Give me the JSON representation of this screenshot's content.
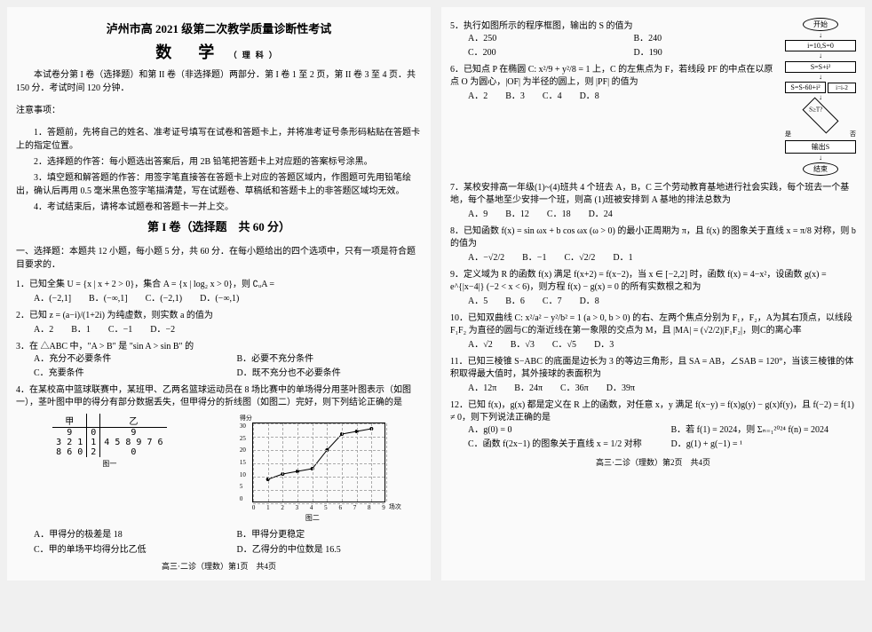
{
  "header": {
    "title_main": "泸州市高 2021 级第二次教学质量诊断性考试",
    "title_sub": "数　学",
    "subject_suffix": "（理科）",
    "intro1": "本试卷分第 I 卷（选择题）和第 II 卷（非选择题）两部分．第 I 卷 1 至 2 页，第 II 卷 3 至 4 页．共 150 分．考试时间 120 分钟．",
    "notice_title": "注意事项：",
    "notice1": "1．答题前，先将自己的姓名、准考证号填写在试卷和答题卡上，并将准考证号条形码粘贴在答题卡上的指定位置。",
    "notice2": "2．选择题的作答：每小题选出答案后，用 2B 铅笔把答题卡上对应题的答案标号涂黑。",
    "notice3": "3．填空题和解答题的作答：用签字笔直接答在答题卡上对应的答题区域内，作图题可先用铅笔绘出，确认后再用 0.5 毫米黑色签字笔描清楚，写在试题卷、草稿纸和答题卡上的非答题区域均无效。",
    "notice4": "4．考试结束后，请将本试题卷和答题卡一并上交。"
  },
  "section1": {
    "title": "第 I 卷（选择题　共 60 分）",
    "desc": "一、选择题：本题共 12 小题，每小题 5 分，共 60 分．在每小题给出的四个选项中，只有一项是符合题目要求的．"
  },
  "q1": {
    "stem": "1．已知全集 U = {x | x + 2 > 0}，集合 A = {x | log₂ x > 0}，则 ∁ᵤA =",
    "a": "A．(−2,1]",
    "b": "B．(−∞,1]",
    "c": "C．(−2,1)",
    "d": "D．(−∞,1)"
  },
  "q2": {
    "stem": "2．已知 z = (a−i)/(1+2i) 为纯虚数，则实数 a 的值为",
    "a": "A．2",
    "b": "B．1",
    "c": "C．−1",
    "d": "D．−2"
  },
  "q3": {
    "stem": "3．在 △ABC 中，\"A > B\" 是 \"sin A > sin B\" 的",
    "a": "A．充分不必要条件",
    "b": "B．必要不充分条件",
    "c": "C．充要条件",
    "d": "D．既不充分也不必要条件"
  },
  "q4": {
    "stem": "4．在某校高中篮球联赛中，某班甲、乙两名篮球运动员在 8 场比赛中的单场得分用茎叶图表示（如图一），茎叶图中甲的得分有部分数据丢失，但甲得分的折线图（如图二）完好，则下列结论正确的是",
    "a": "A．甲得分的极差是 18",
    "b": "B．甲得分更稳定",
    "c": "C．甲的单场平均得分比乙低",
    "d": "D．乙得分的中位数是 16.5"
  },
  "q5": {
    "stem": "5．执行如图所示的程序框图，输出的 S 的值为",
    "a": "A．250",
    "b": "B．240",
    "c": "C．200",
    "d": "D．190"
  },
  "q6": {
    "stem": "6．已知点 P 在椭圆 C: x²/9 + y²/8 = 1 上，C 的左焦点为 F，若线段 PF 的中点在以原点 O 为圆心，|OF| 为半径的圆上，则 |PF| 的值为",
    "a": "A．2",
    "b": "B．3",
    "c": "C．4",
    "d": "D．8"
  },
  "q7": {
    "stem": "7．某校安排高一年级(1)~(4)班共 4 个班去 A，B，C 三个劳动教育基地进行社会实践，每个班去一个基地，每个基地至少安排一个班，则高 (1)班被安排到 A 基地的排法总数为",
    "a": "A．9",
    "b": "B．12",
    "c": "C．18",
    "d": "D．24"
  },
  "q8": {
    "stem": "8．已知函数 f(x) = sin ωx + b cos ωx (ω > 0) 的最小正周期为 π，且 f(x) 的图象关于直线 x = π/8 对称，则 b 的值为",
    "a": "A．−√2/2",
    "b": "B．−1",
    "c": "C．√2/2",
    "d": "D．1"
  },
  "q9": {
    "stem": "9．定义域为 R 的函数 f(x) 满足 f(x+2) = f(x−2)，当 x ∈ [−2,2] 时，函数 f(x) = 4−x²，设函数 g(x) = e^{|x−4|} (−2 < x < 6)，则方程 f(x) − g(x) = 0 的所有实数根之和为",
    "a": "A．5",
    "b": "B．6",
    "c": "C．7",
    "d": "D．8"
  },
  "q10": {
    "stem": "10．已知双曲线 C: x²/a² − y²/b² = 1 (a > 0, b > 0) 的右、左两个焦点分别为 F₁，F₂，A为其右顶点，以线段 F₁F₂ 为直径的圆与C的渐近线在第一象限的交点为 M，且 |MA| = (√2/2)|F₁F₂|，则C的离心率",
    "a": "A．√2",
    "b": "B．√3",
    "c": "C．√5",
    "d": "D．3"
  },
  "q11": {
    "stem": "11．已知三棱锥 S−ABC 的底面是边长为 3 的等边三角形，且 SA = AB，∠SAB = 120°，当该三棱锥的体积取得最大值时，其外接球的表面积为",
    "a": "A．12π",
    "b": "B．24π",
    "c": "C．36π",
    "d": "D．39π"
  },
  "q12": {
    "stem": "12．已知 f(x)，g(x) 都是定义在 R 上的函数，对任意 x，y 满足 f(x−y) = f(x)g(y) − g(x)f(y)，且 f(−2) = f(1) ≠ 0，则下列说法正确的是",
    "a": "A．g(0) = 0",
    "b": "B．若 f(1) = 2024，则 Σₙ₌₁²⁰²⁴ f(n) = 2024",
    "c": "C．函数 f(2x−1) 的图象关于直线 x = 1/2 对称",
    "d": "D．g(1) + g(−1) = ¹"
  },
  "stemleaf": {
    "header_left": "甲",
    "header_right": "乙",
    "rows": [
      {
        "left": "9",
        "stem": "0",
        "right": "9"
      },
      {
        "left": "3 2 1",
        "stem": "1",
        "right": "4 5 8 9 7 6"
      },
      {
        "left": "8 6 0",
        "stem": "2",
        "right": "0"
      }
    ],
    "label": "图一"
  },
  "linechart": {
    "title": "得分",
    "y_ticks": [
      "30",
      "25",
      "20",
      "15",
      "10",
      "5",
      "0"
    ],
    "x_ticks": [
      "0",
      "1",
      "2",
      "3",
      "4",
      "5",
      "6",
      "7",
      "8",
      "9"
    ],
    "x_label": "场次",
    "points": [
      [
        1,
        9
      ],
      [
        2,
        11
      ],
      [
        3,
        12
      ],
      [
        4,
        13
      ],
      [
        5,
        20
      ],
      [
        6,
        26
      ],
      [
        7,
        27
      ],
      [
        8,
        28
      ]
    ],
    "label": "图二",
    "xmax": 9,
    "ymax": 30,
    "grid_color": "#aaaaaa"
  },
  "flowchart": {
    "start": "开始",
    "b1": "i=10,S=0",
    "b2": "S=S+i²",
    "b3": "S=S-60+i²",
    "cond": "S≥T?",
    "yes": "是",
    "no": "否",
    "bloop": "i=i-2",
    "out": "输出S",
    "end": "结束"
  },
  "footer": {
    "p1": "高三·二诊（理数）第1页　共4页",
    "p2": "高三·二诊（理数）第2页　共4页"
  }
}
